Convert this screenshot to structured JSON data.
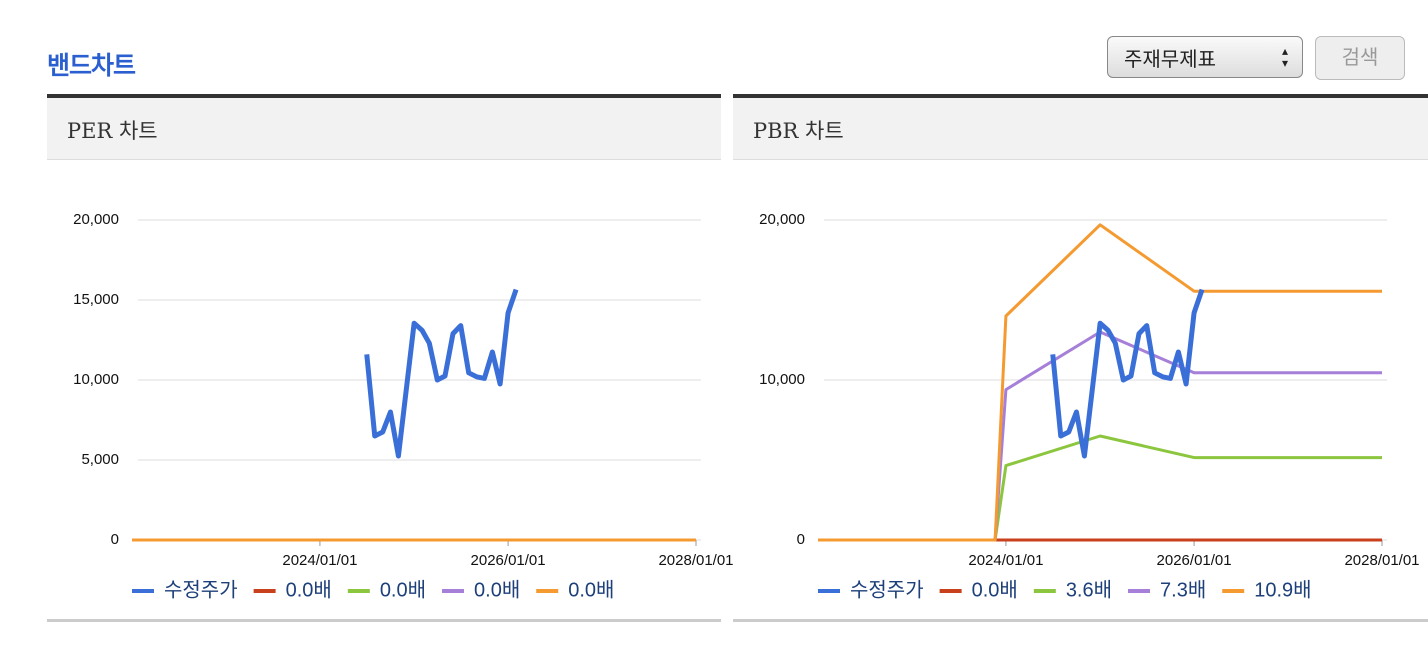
{
  "header": {
    "title": "밴드차트",
    "select": "주재무제표",
    "button": "검색"
  },
  "chart_data": [
    {
      "type": "line",
      "title": "PER 차트",
      "xlim": [
        "2022/01/01",
        "2028/01/01"
      ],
      "xticks": [
        "2024/01/01",
        "2026/01/01",
        "2028/01/01"
      ],
      "ylim": [
        0,
        20000
      ],
      "yticks": [
        {
          "value": 0,
          "label": "0"
        },
        {
          "value": 5000,
          "label": "5,000"
        },
        {
          "value": 10000,
          "label": "10,000"
        },
        {
          "value": 15000,
          "label": "15,000"
        },
        {
          "value": 20000,
          "label": "20,000"
        }
      ],
      "grid": true,
      "series": [
        {
          "name": "수정주가",
          "color": "#3b6fd8",
          "x": [
            "2024/07/01",
            "2024/08/01",
            "2024/09/01",
            "2024/10/01",
            "2024/11/01",
            "2025/01/01",
            "2025/02/01",
            "2025/03/01",
            "2025/04/01",
            "2025/05/01",
            "2025/06/01",
            "2025/07/01",
            "2025/08/01",
            "2025/09/01",
            "2025/10/01",
            "2025/11/01",
            "2025/12/01",
            "2026/01/01",
            "2026/02/01"
          ],
          "values": [
            11600,
            6500,
            6750,
            8000,
            5250,
            13550,
            13100,
            12300,
            10000,
            10250,
            12900,
            13400,
            10450,
            10200,
            10100,
            11750,
            9750,
            14200,
            15650
          ]
        },
        {
          "name": "0.0배",
          "color": "#c8401c",
          "x": [
            "2022/01/01",
            "2028/01/01"
          ],
          "values": [
            0,
            0
          ]
        },
        {
          "name": "0.0배",
          "color": "#8cc63f",
          "x": [
            "2022/01/01",
            "2028/01/01"
          ],
          "values": [
            0,
            0
          ]
        },
        {
          "name": "0.0배",
          "color": "#a67fd8",
          "x": [
            "2022/01/01",
            "2028/01/01"
          ],
          "values": [
            0,
            0
          ]
        },
        {
          "name": "0.0배",
          "color": "#f59a30",
          "x": [
            "2022/01/01",
            "2028/01/01"
          ],
          "values": [
            0,
            0
          ]
        }
      ]
    },
    {
      "type": "line",
      "title": "PBR 차트",
      "xlim": [
        "2022/01/01",
        "2028/01/01"
      ],
      "xticks": [
        "2024/01/01",
        "2026/01/01",
        "2028/01/01"
      ],
      "ylim": [
        0,
        20000
      ],
      "yticks": [
        {
          "value": 0,
          "label": "0"
        },
        {
          "value": 10000,
          "label": "10,000"
        },
        {
          "value": 20000,
          "label": "20,000"
        }
      ],
      "grid": true,
      "series": [
        {
          "name": "수정주가",
          "color": "#3b6fd8",
          "x": [
            "2024/07/01",
            "2024/08/01",
            "2024/09/01",
            "2024/10/01",
            "2024/11/01",
            "2025/01/01",
            "2025/02/01",
            "2025/03/01",
            "2025/04/01",
            "2025/05/01",
            "2025/06/01",
            "2025/07/01",
            "2025/08/01",
            "2025/09/01",
            "2025/10/01",
            "2025/11/01",
            "2025/12/01",
            "2026/01/01",
            "2026/02/01"
          ],
          "values": [
            11600,
            6500,
            6750,
            8000,
            5250,
            13550,
            13100,
            12300,
            10000,
            10250,
            12900,
            13400,
            10450,
            10200,
            10100,
            11750,
            9750,
            14200,
            15650
          ]
        },
        {
          "name": "0.0배",
          "color": "#c8401c",
          "x": [
            "2022/01/01",
            "2028/01/01"
          ],
          "values": [
            0,
            0
          ]
        },
        {
          "name": "3.6배",
          "color": "#8cc63f",
          "x": [
            "2022/01/01",
            "2023/11/20",
            "2024/01/01",
            "2025/01/01",
            "2026/01/01",
            "2028/01/01"
          ],
          "values": [
            0,
            0,
            4650,
            6500,
            5150,
            5150
          ]
        },
        {
          "name": "7.3배",
          "color": "#a67fd8",
          "x": [
            "2022/01/01",
            "2023/11/20",
            "2024/01/01",
            "2025/01/01",
            "2026/01/01",
            "2028/01/01"
          ],
          "values": [
            0,
            0,
            9400,
            13000,
            10450,
            10450
          ]
        },
        {
          "name": "10.9배",
          "color": "#f59a30",
          "x": [
            "2022/01/01",
            "2023/11/20",
            "2024/01/01",
            "2025/01/01",
            "2026/01/01",
            "2028/01/01"
          ],
          "values": [
            0,
            0,
            14000,
            19700,
            15550,
            15550
          ]
        }
      ]
    }
  ]
}
